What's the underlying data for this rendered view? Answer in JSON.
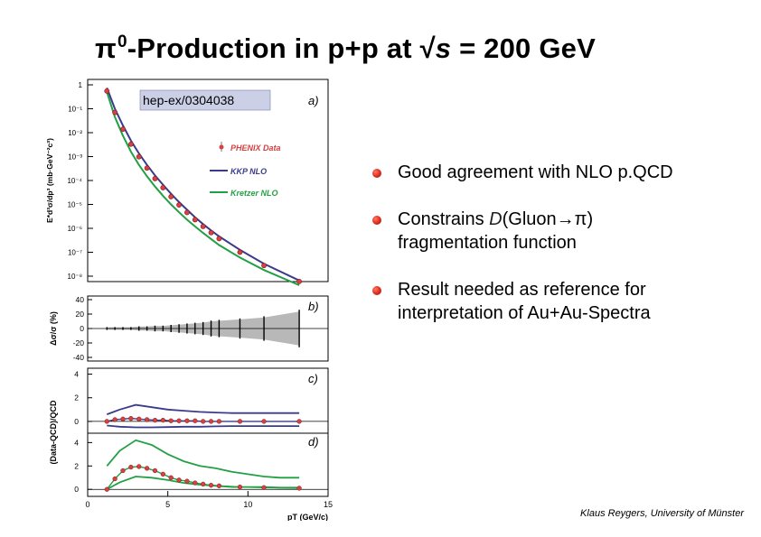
{
  "slide": {
    "title_pi": "π",
    "title_sup": "0",
    "title_mid": "-Production in p+p at √",
    "title_s": "s",
    "title_end": " = 200 GeV",
    "credit": "Klaus Reygers, University of Münster"
  },
  "bullets": [
    {
      "text": "Good agreement with NLO p.QCD"
    },
    {
      "prefix": "Constrains ",
      "emph": "D",
      "mid": "(Gluon",
      "arrow": "→",
      "end": "π)",
      "line2": "fragmentation function"
    },
    {
      "text": "Result needed as reference for interpretation of Au+Au-Spectra"
    }
  ],
  "figure": {
    "ref_label": "hep-ex/0304038",
    "colors": {
      "data": "#d94040",
      "kkp": "#3b3b8c",
      "kretzer": "#23a045",
      "band": "#b8b8b8",
      "ref_box": "#ccd0e6"
    },
    "y_axis_main": "E*d³σ/dp³ (mb·GeV⁻²c³)",
    "y_axis_resid": "Δσ/σ (%)",
    "y_axis_ratio": "(Data-QCD)/QCD",
    "x_axis_title": "pT (GeV/c)",
    "x_ticks": [
      "0",
      "5",
      "10",
      "15"
    ]
  },
  "chart_data": [
    {
      "panel": "a)",
      "type": "scatter",
      "ylog": true,
      "ylim": [
        1e-08,
        1
      ],
      "xlim": [
        0,
        15
      ],
      "y_tick_labels": [
        "1",
        "10⁻¹",
        "10⁻²",
        "10⁻³",
        "10⁻⁴",
        "10⁻⁵",
        "10⁻⁶",
        "10⁻⁷",
        "10⁻⁸"
      ],
      "legend": [
        "PHENIX Data",
        "KKP NLO",
        "Kretzer NLO"
      ],
      "legend_position": "right",
      "series": [
        {
          "name": "PHENIX Data",
          "x": [
            1.2,
            1.7,
            2.2,
            2.7,
            3.2,
            3.7,
            4.2,
            4.7,
            5.2,
            5.7,
            6.2,
            6.7,
            7.2,
            7.7,
            8.2,
            9.5,
            11.0,
            13.2
          ],
          "y": [
            0.55,
            0.07,
            0.014,
            0.0033,
            0.00098,
            0.00033,
            0.00012,
            5e-05,
            2.1e-05,
            9.5e-06,
            4.6e-06,
            2.3e-06,
            1.2e-06,
            6.6e-07,
            3.7e-07,
            1e-07,
            2.8e-08,
            6e-09
          ]
        },
        {
          "name": "KKP NLO",
          "x": [
            1.2,
            1.7,
            2.2,
            2.7,
            3.2,
            3.7,
            4.2,
            4.7,
            5.2,
            5.7,
            6.2,
            6.7,
            7.2,
            7.7,
            8.2,
            9.5,
            11.0,
            13.2
          ],
          "y": [
            0.75,
            0.1,
            0.02,
            0.0046,
            0.00135,
            0.00045,
            0.000163,
            6.7e-05,
            2.8e-05,
            1.25e-05,
            6e-06,
            2.9e-06,
            1.5e-06,
            8.2e-07,
            4.6e-07,
            1.25e-07,
            3.3e-08,
            6.6e-09
          ]
        },
        {
          "name": "Kretzer NLO",
          "x": [
            1.2,
            1.7,
            2.2,
            2.7,
            3.2,
            3.7,
            4.2,
            4.7,
            5.2,
            5.7,
            6.2,
            6.7,
            7.2,
            7.7,
            8.2,
            9.5,
            11.0,
            13.2
          ],
          "y": [
            0.5,
            0.045,
            0.0075,
            0.0016,
            0.00045,
            0.00015,
            5.6e-05,
            2.3e-05,
            1e-05,
            4.7e-06,
            2.3e-06,
            1.2e-06,
            6.4e-07,
            3.6e-07,
            2e-07,
            6e-08,
            1.8e-08,
            4.2e-09
          ]
        }
      ]
    },
    {
      "panel": "b)",
      "type": "scatter",
      "ylim": [
        -45,
        45
      ],
      "y_tick_labels": [
        "40",
        "20",
        "0",
        "-20",
        "-40"
      ],
      "series": [
        {
          "name": "PHENIX Data",
          "x": [
            1.2,
            1.7,
            2.2,
            2.7,
            3.2,
            3.7,
            4.2,
            4.7,
            5.2,
            5.7,
            6.2,
            6.7,
            7.2,
            7.7,
            8.2,
            9.5,
            11.0,
            13.2
          ],
          "y": [
            0,
            0,
            0,
            0,
            0,
            0,
            0,
            0,
            0,
            0,
            0,
            0,
            0,
            0,
            0,
            0,
            0,
            0
          ],
          "err": [
            2,
            2,
            2,
            2,
            3,
            3,
            4,
            4,
            5,
            6,
            7,
            8,
            9,
            11,
            12,
            14,
            17,
            26
          ]
        }
      ]
    },
    {
      "panel": "c)",
      "type": "line",
      "ylim": [
        -1,
        4.5
      ],
      "y_tick_labels": [
        "4",
        "2",
        "0"
      ],
      "series": [
        {
          "name": "PHENIX Data",
          "x": [
            1.2,
            1.7,
            2.2,
            2.7,
            3.2,
            3.7,
            4.2,
            4.7,
            5.2,
            5.7,
            6.2,
            6.7,
            7.2,
            7.7,
            8.2,
            9.5,
            11.0,
            13.2
          ],
          "y": [
            0,
            0.15,
            0.2,
            0.25,
            0.2,
            0.15,
            0.1,
            0.1,
            0.05,
            0.05,
            0.05,
            0.05,
            0,
            0,
            0,
            0,
            0,
            0
          ]
        },
        {
          "name": "KKP NLO",
          "x": [
            1.2,
            2.0,
            3.0,
            4.0,
            5.0,
            6.0,
            7.0,
            8.0,
            9.0,
            10.0,
            11.0,
            12.0,
            13.2
          ],
          "y": [
            0.6,
            1.0,
            1.4,
            1.2,
            1.0,
            0.9,
            0.8,
            0.75,
            0.7,
            0.7,
            0.7,
            0.7,
            0.7
          ]
        },
        {
          "name": "Kretzer NLO",
          "x": [
            1.2,
            2.0,
            3.0,
            4.0,
            5.0,
            6.0,
            7.0,
            8.0,
            9.0,
            10.0,
            11.0,
            12.0,
            13.2
          ],
          "y": [
            -0.35,
            -0.45,
            -0.5,
            -0.5,
            -0.48,
            -0.45,
            -0.45,
            -0.42,
            -0.4,
            -0.4,
            -0.4,
            -0.4,
            -0.4
          ]
        }
      ]
    },
    {
      "panel": "d)",
      "type": "line",
      "ylim": [
        -0.6,
        4.8
      ],
      "y_tick_labels": [
        "4",
        "2",
        "0"
      ],
      "series": [
        {
          "name": "PHENIX Data",
          "x": [
            1.2,
            1.7,
            2.2,
            2.7,
            3.2,
            3.7,
            4.2,
            4.7,
            5.2,
            5.7,
            6.2,
            6.7,
            7.2,
            7.7,
            8.2,
            9.5,
            11.0,
            13.2
          ],
          "y": [
            0,
            0.9,
            1.6,
            1.9,
            1.95,
            1.8,
            1.6,
            1.3,
            1.0,
            0.8,
            0.7,
            0.55,
            0.45,
            0.35,
            0.3,
            0.2,
            0.15,
            0.1
          ]
        },
        {
          "name": "Kretzer NLO upper",
          "x": [
            1.2,
            2.0,
            3.0,
            4.0,
            5.0,
            6.0,
            7.0,
            8.0,
            9.0,
            10.0,
            11.0,
            12.0,
            13.2
          ],
          "y": [
            2.0,
            3.3,
            4.2,
            3.8,
            3.0,
            2.4,
            2.0,
            1.8,
            1.5,
            1.3,
            1.1,
            1.0,
            1.0
          ]
        },
        {
          "name": "Kretzer NLO lower",
          "x": [
            1.2,
            2.0,
            3.0,
            4.0,
            5.0,
            6.0,
            7.0,
            8.0,
            9.0,
            10.0,
            11.0,
            12.0,
            13.2
          ],
          "y": [
            0,
            0.6,
            1.1,
            1.0,
            0.8,
            0.55,
            0.4,
            0.3,
            0.2,
            0.2,
            0.2,
            0.15,
            0.15
          ]
        }
      ]
    }
  ]
}
